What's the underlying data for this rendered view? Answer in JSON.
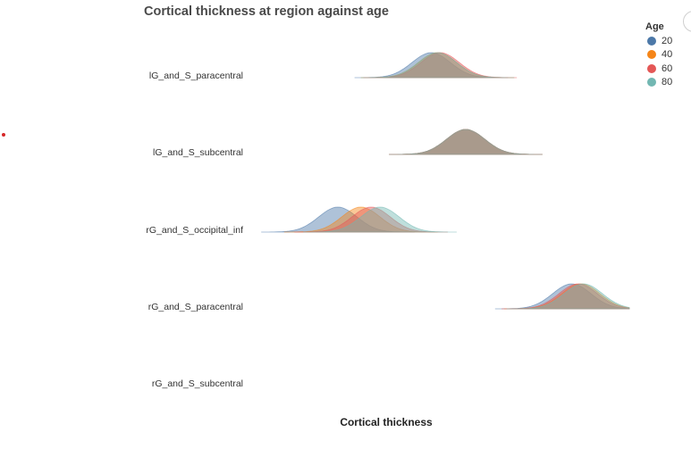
{
  "chart_data": {
    "type": "area",
    "title": "Cortical thickness at region against age",
    "xlabel": "Cortical thickness",
    "legend": {
      "title": "Age",
      "placement": "top-right",
      "entries": [
        {
          "label": "20",
          "color": "#4c78a8"
        },
        {
          "label": "40",
          "color": "#f58518"
        },
        {
          "label": "60",
          "color": "#e45756"
        },
        {
          "label": "80",
          "color": "#72b7b2"
        }
      ]
    },
    "regions": [
      "lG_and_S_paracentral",
      "lG_and_S_subcentral",
      "rG_and_S_occipital_inf",
      "rG_and_S_paracentral",
      "rG_and_S_subcentral"
    ],
    "series": [
      {
        "name": "20",
        "peaks": [
          2.45,
          2.72,
          1.72,
          3.55,
          null
        ]
      },
      {
        "name": "40",
        "peaks": [
          2.5,
          2.72,
          1.9,
          3.62,
          null
        ]
      },
      {
        "name": "60",
        "peaks": [
          2.52,
          2.72,
          1.98,
          3.6,
          null
        ]
      },
      {
        "name": "80",
        "peaks": [
          2.5,
          2.72,
          2.05,
          3.64,
          null
        ]
      }
    ],
    "xlim": [
      1.0,
      4.0
    ],
    "grid": false
  }
}
